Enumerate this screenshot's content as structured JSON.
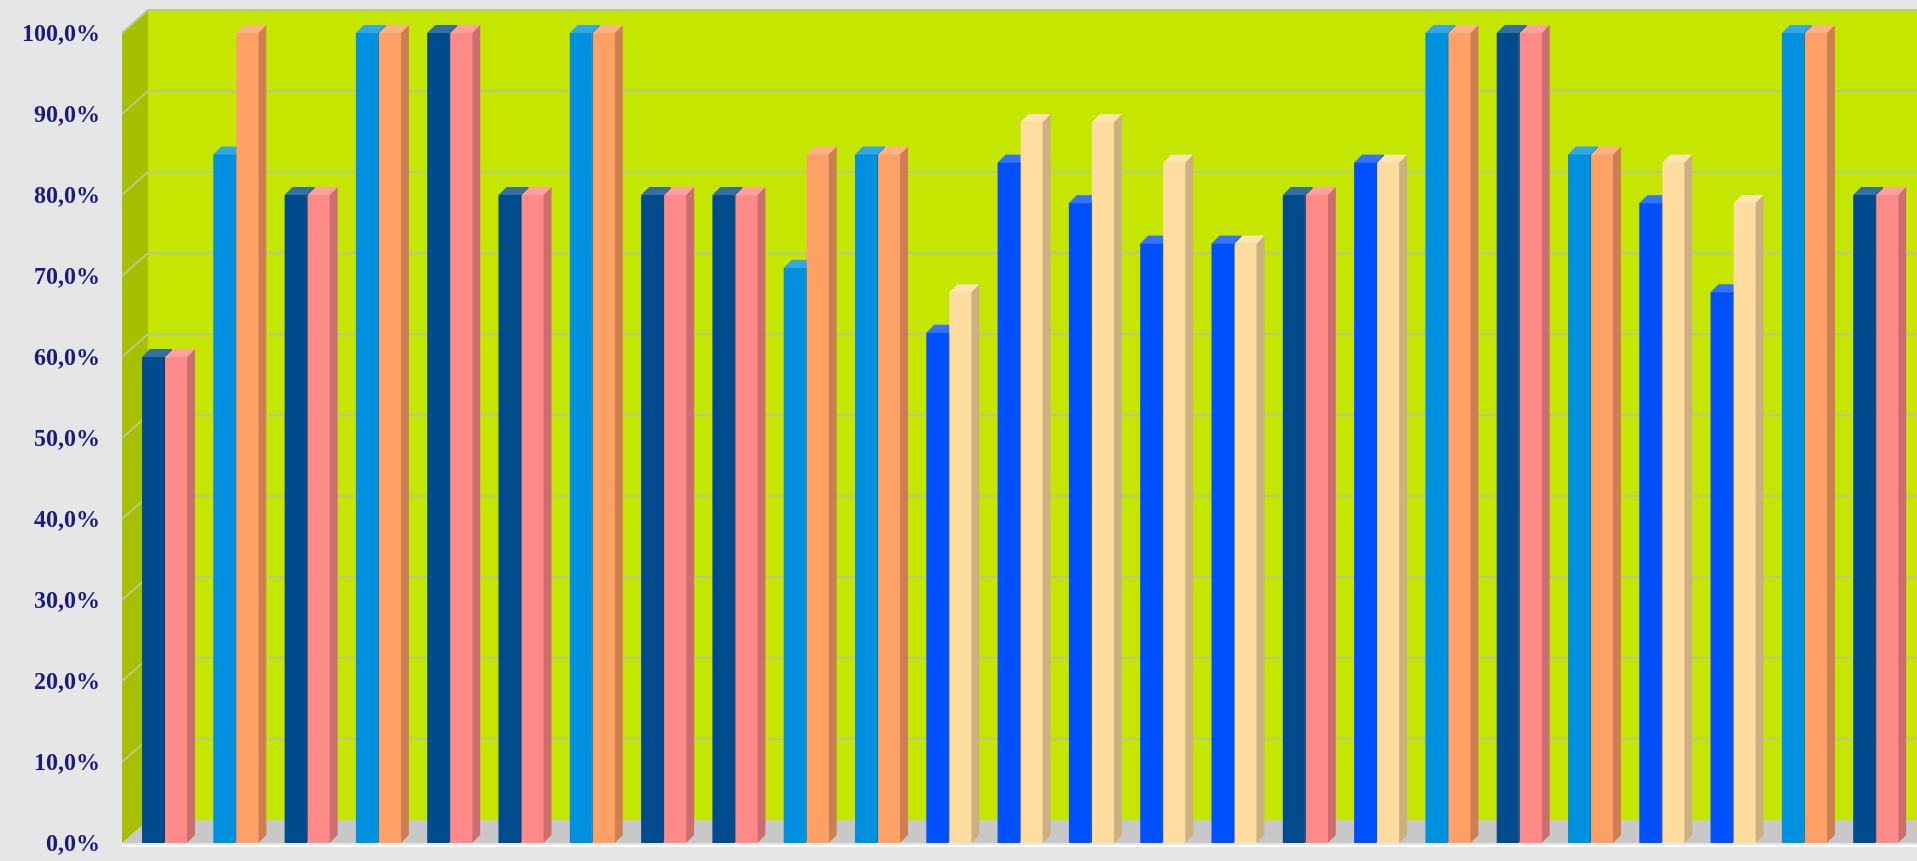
{
  "chart_data": {
    "type": "bar",
    "title": "",
    "xlabel": "",
    "ylabel": "",
    "ylim": [
      0,
      100
    ],
    "y_ticks": [
      "0,0%",
      "10,0%",
      "20,0%",
      "30,0%",
      "40,0%",
      "50,0%",
      "60,0%",
      "70,0%",
      "80,0%",
      "90,0%",
      "100,0%"
    ],
    "grid": true,
    "legend": "none",
    "style": "3d-clustered-column",
    "colors": {
      "wall": "#c4e600",
      "wall_side": "#a6c000",
      "floor": "#c8c8c8",
      "gridline": "#b9c98a",
      "tick_text": "#1a1a80"
    },
    "pairs": [
      {
        "values": [
          60,
          60
        ],
        "colors": [
          "#004b8d",
          "#ff8a8a"
        ]
      },
      {
        "values": [
          85,
          100
        ],
        "colors": [
          "#0090e0",
          "#ffa066"
        ]
      },
      {
        "values": [
          80,
          80
        ],
        "colors": [
          "#004b8d",
          "#ff8a8a"
        ]
      },
      {
        "values": [
          100,
          100
        ],
        "colors": [
          "#0090e0",
          "#ffa066"
        ]
      },
      {
        "values": [
          100,
          100
        ],
        "colors": [
          "#004b8d",
          "#ff8a8a"
        ]
      },
      {
        "values": [
          80,
          80
        ],
        "colors": [
          "#004b8d",
          "#ff8a8a"
        ]
      },
      {
        "values": [
          100,
          100
        ],
        "colors": [
          "#0090e0",
          "#ffa066"
        ]
      },
      {
        "values": [
          80,
          80
        ],
        "colors": [
          "#004b8d",
          "#ff8a8a"
        ]
      },
      {
        "values": [
          80,
          80
        ],
        "colors": [
          "#004b8d",
          "#ff8a8a"
        ]
      },
      {
        "values": [
          71,
          85
        ],
        "colors": [
          "#0090e0",
          "#ffa066"
        ]
      },
      {
        "values": [
          85,
          85
        ],
        "colors": [
          "#0090e0",
          "#ffa066"
        ]
      },
      {
        "values": [
          63,
          68
        ],
        "colors": [
          "#0050ff",
          "#ffdda0"
        ]
      },
      {
        "values": [
          84,
          89
        ],
        "colors": [
          "#0050ff",
          "#ffdda0"
        ]
      },
      {
        "values": [
          79,
          89
        ],
        "colors": [
          "#0050ff",
          "#ffdda0"
        ]
      },
      {
        "values": [
          74,
          84
        ],
        "colors": [
          "#0050ff",
          "#ffdda0"
        ]
      },
      {
        "values": [
          74,
          74
        ],
        "colors": [
          "#0050ff",
          "#ffdda0"
        ]
      },
      {
        "values": [
          80,
          80
        ],
        "colors": [
          "#004b8d",
          "#ff8a8a"
        ]
      },
      {
        "values": [
          84,
          84
        ],
        "colors": [
          "#0050ff",
          "#ffdda0"
        ]
      },
      {
        "values": [
          100,
          100
        ],
        "colors": [
          "#0090e0",
          "#ffa066"
        ]
      },
      {
        "values": [
          100,
          100
        ],
        "colors": [
          "#004b8d",
          "#ff8a8a"
        ]
      },
      {
        "values": [
          85,
          85
        ],
        "colors": [
          "#0090e0",
          "#ffa066"
        ]
      },
      {
        "values": [
          79,
          84
        ],
        "colors": [
          "#0050ff",
          "#ffdda0"
        ]
      },
      {
        "values": [
          68,
          79
        ],
        "colors": [
          "#0050ff",
          "#ffdda0"
        ]
      },
      {
        "values": [
          100,
          100
        ],
        "colors": [
          "#0090e0",
          "#ffa066"
        ]
      },
      {
        "values": [
          80,
          80
        ],
        "colors": [
          "#004b8d",
          "#ff8a8a"
        ]
      }
    ]
  }
}
